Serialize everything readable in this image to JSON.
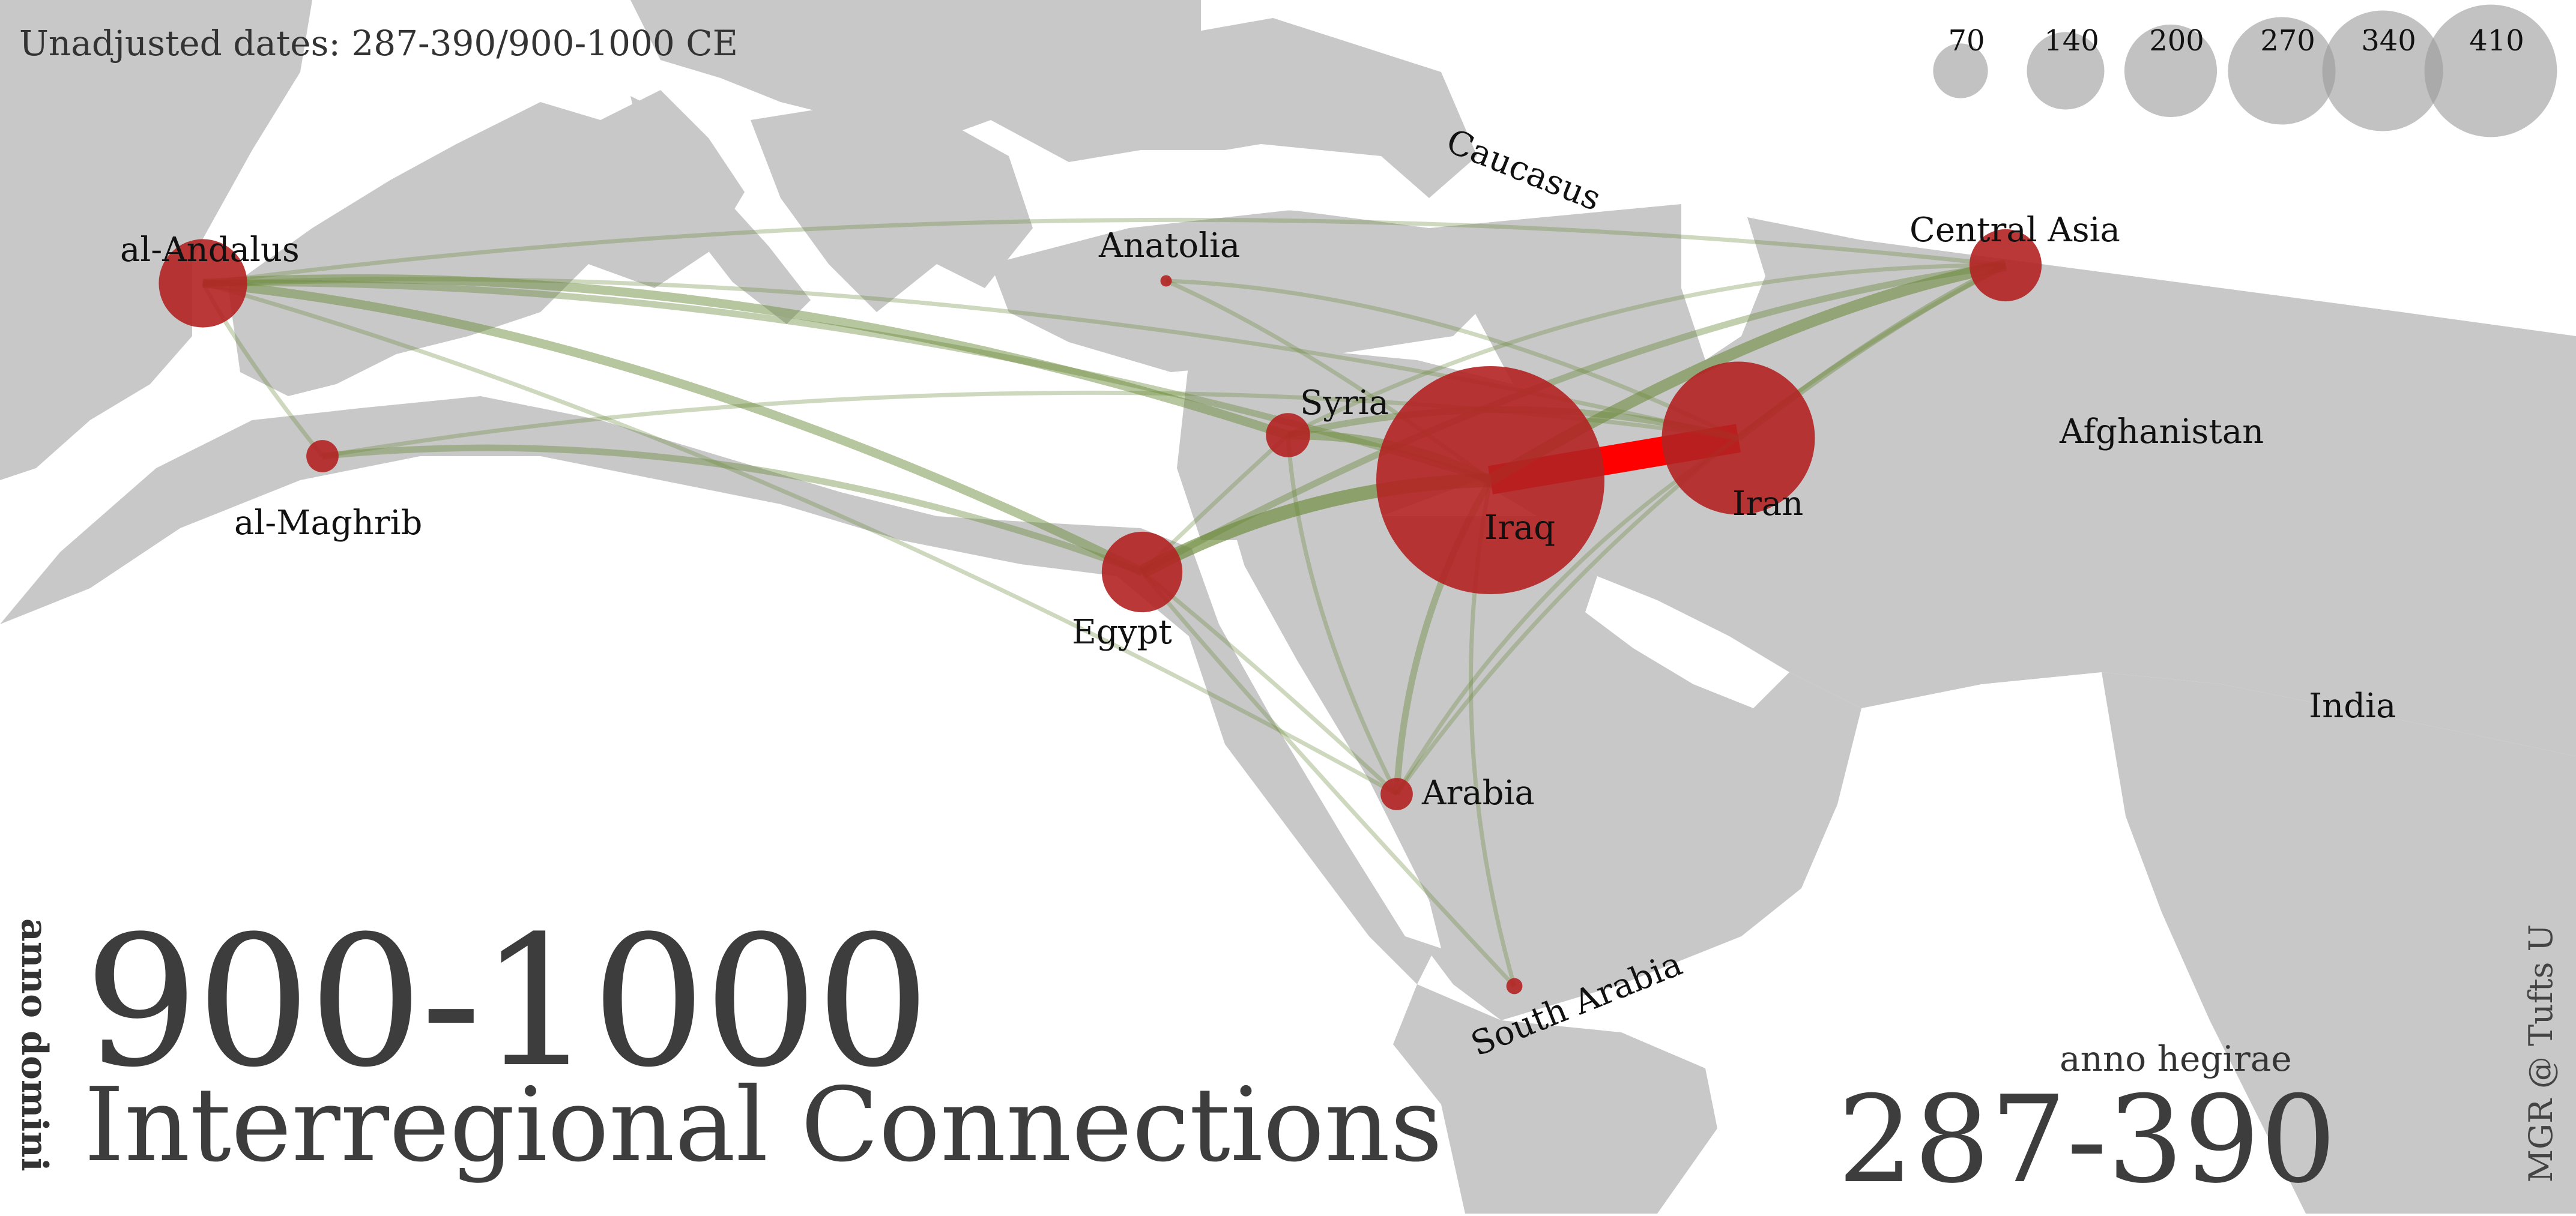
{
  "header": {
    "date_note": "Unadjusted dates: 287-390/900-1000 CE"
  },
  "title": {
    "anno_domini_label": "anno domini",
    "range_ad": "900-1000",
    "subtitle": "Interregional Connections"
  },
  "hijri": {
    "label": "anno hegirae",
    "range": "287-390"
  },
  "credit": "MGR @ Tufts U",
  "legend": {
    "sizes": [
      {
        "value": 70,
        "label": "70"
      },
      {
        "value": 140,
        "label": "140"
      },
      {
        "value": 200,
        "label": "200"
      },
      {
        "value": 270,
        "label": "270"
      },
      {
        "value": 340,
        "label": "340"
      },
      {
        "value": 410,
        "label": "410"
      }
    ]
  },
  "regions": [
    {
      "id": "andalus",
      "label": "al-Andalus",
      "value": 60
    },
    {
      "id": "maghrib",
      "label": "al-Maghrib",
      "value": 8
    },
    {
      "id": "anatolia",
      "label": "Anatolia",
      "value": 1
    },
    {
      "id": "syria",
      "label": "Syria",
      "value": 15
    },
    {
      "id": "egypt",
      "label": "Egypt",
      "value": 50
    },
    {
      "id": "iraq",
      "label": "Iraq",
      "value": 400
    },
    {
      "id": "iran",
      "label": "Iran",
      "value": 180
    },
    {
      "id": "centralasia",
      "label": "Central Asia",
      "value": 40
    },
    {
      "id": "arabia",
      "label": "Arabia",
      "value": 8
    },
    {
      "id": "southarabia",
      "label": "South Arabia",
      "value": 2
    }
  ],
  "place_labels": [
    {
      "id": "caucasus",
      "label": "Caucasus"
    },
    {
      "id": "afghanistan",
      "label": "Afghanistan"
    },
    {
      "id": "india",
      "label": "India"
    }
  ],
  "connections": [
    {
      "from": "iraq",
      "to": "iran",
      "weight": 10,
      "strongest": true
    },
    {
      "from": "iraq",
      "to": "egypt",
      "weight": 5
    },
    {
      "from": "iraq",
      "to": "centralasia",
      "weight": 4
    },
    {
      "from": "iraq",
      "to": "syria",
      "weight": 3
    },
    {
      "from": "andalus",
      "to": "egypt",
      "weight": 3
    },
    {
      "from": "andalus",
      "to": "syria",
      "weight": 3
    },
    {
      "from": "andalus",
      "to": "iraq",
      "weight": 2
    },
    {
      "from": "andalus",
      "to": "iran",
      "weight": 1
    },
    {
      "from": "andalus",
      "to": "maghrib",
      "weight": 1
    },
    {
      "from": "andalus",
      "to": "centralasia",
      "weight": 1
    },
    {
      "from": "andalus",
      "to": "arabia",
      "weight": 1
    },
    {
      "from": "maghrib",
      "to": "egypt",
      "weight": 2
    },
    {
      "from": "maghrib",
      "to": "iran",
      "weight": 1
    },
    {
      "from": "egypt",
      "to": "syria",
      "weight": 1
    },
    {
      "from": "egypt",
      "to": "centralasia",
      "weight": 2
    },
    {
      "from": "egypt",
      "to": "arabia",
      "weight": 1
    },
    {
      "from": "egypt",
      "to": "southarabia",
      "weight": 1
    },
    {
      "from": "syria",
      "to": "iran",
      "weight": 2
    },
    {
      "from": "syria",
      "to": "arabia",
      "weight": 1
    },
    {
      "from": "iraq",
      "to": "arabia",
      "weight": 2
    },
    {
      "from": "iraq",
      "to": "southarabia",
      "weight": 1
    },
    {
      "from": "iran",
      "to": "arabia",
      "weight": 1
    },
    {
      "from": "iran",
      "to": "centralasia",
      "weight": 2
    },
    {
      "from": "centralasia",
      "to": "arabia",
      "weight": 1
    },
    {
      "from": "centralasia",
      "to": "syria",
      "weight": 1
    },
    {
      "from": "anatolia",
      "to": "iraq",
      "weight": 1
    },
    {
      "from": "anatolia",
      "to": "iran",
      "weight": 1
    }
  ],
  "colors": {
    "land": "#c8c8c8",
    "node": "#b22222",
    "link": "#6b8a3a",
    "strongest_link": "#ff0000",
    "legend_circle": "#9a9a9a"
  }
}
